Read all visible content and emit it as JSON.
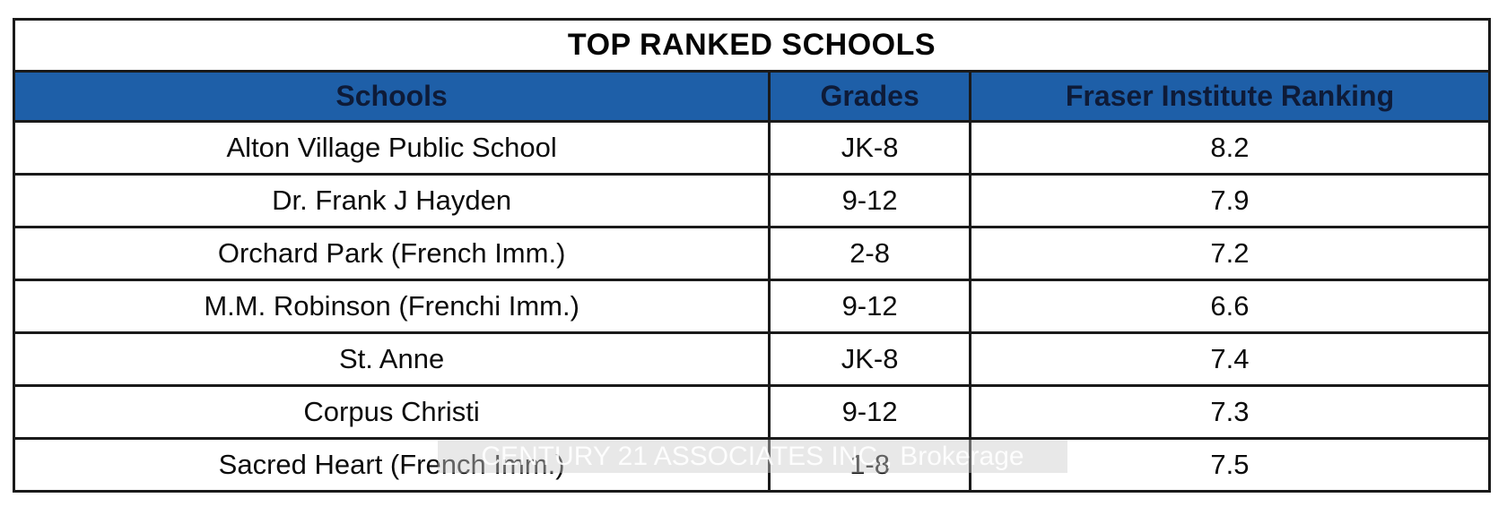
{
  "chart_data": {
    "type": "table",
    "title": "TOP RANKED SCHOOLS",
    "columns": [
      "Schools",
      "Grades",
      "Fraser Institute Ranking"
    ],
    "rows": [
      {
        "school": "Alton Village Public School",
        "grades": "JK-8",
        "ranking": "8.2"
      },
      {
        "school": "Dr. Frank J Hayden",
        "grades": "9-12",
        "ranking": "7.9"
      },
      {
        "school": "Orchard Park (French Imm.)",
        "grades": "2-8",
        "ranking": "7.2"
      },
      {
        "school": "M.M. Robinson (Frenchi Imm.)",
        "grades": "9-12",
        "ranking": "6.6"
      },
      {
        "school": "St. Anne",
        "grades": "JK-8",
        "ranking": "7.4"
      },
      {
        "school": "Corpus Christi",
        "grades": "9-12",
        "ranking": "7.3"
      },
      {
        "school": "Sacred Heart (French Imm.)",
        "grades": "1-8",
        "ranking": "7.5"
      }
    ],
    "layout": {
      "title_position": "top-center",
      "grid": true
    }
  },
  "watermark": {
    "text": "CENTURY 21 ASSOCIATES INC., Brokerage"
  },
  "colors": {
    "header_bg": "#1e5fa8",
    "header_text": "#0e1b38",
    "border": "#1a1a1a",
    "body_text": "#0c0c0c"
  }
}
